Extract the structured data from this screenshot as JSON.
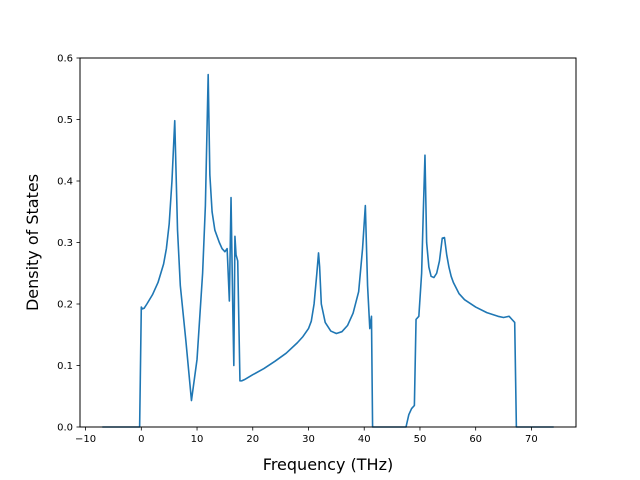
{
  "chart_data": {
    "type": "line",
    "title": "",
    "xlabel": "Frequency (THz)",
    "ylabel": "Density of States",
    "xlim": [
      -11,
      78
    ],
    "ylim": [
      0,
      0.6
    ],
    "xticks": [
      -10,
      0,
      10,
      20,
      30,
      40,
      50,
      60,
      70
    ],
    "xtick_labels": [
      "−10",
      "0",
      "10",
      "20",
      "30",
      "40",
      "50",
      "60",
      "70"
    ],
    "yticks": [
      0.0,
      0.1,
      0.2,
      0.3,
      0.4,
      0.5,
      0.6
    ],
    "ytick_labels": [
      "0.0",
      "0.1",
      "0.2",
      "0.3",
      "0.4",
      "0.5",
      "0.6"
    ],
    "grid": false,
    "legend": false,
    "line_color": "#1f77b4",
    "series": [
      {
        "x": [
          -7.0,
          -0.3,
          0.0,
          0.2,
          0.5,
          1.0,
          2.0,
          3.0,
          4.0,
          4.5,
          5.0,
          5.5,
          6.0,
          6.5,
          7.0,
          8.0,
          9.0,
          10.0,
          11.0,
          11.5,
          12.0,
          12.3,
          12.7,
          13.2,
          14.0,
          14.5,
          15.0,
          15.4,
          15.8,
          16.1,
          16.4,
          16.6,
          16.8,
          17.0,
          17.3,
          17.7,
          18.0,
          18.5,
          20.0,
          22.0,
          24.0,
          26.0,
          28.0,
          29.0,
          30.0,
          30.5,
          31.0,
          31.5,
          31.8,
          32.0,
          32.3,
          33.0,
          34.0,
          35.0,
          36.0,
          37.0,
          38.0,
          39.0,
          39.7,
          40.2,
          40.6,
          41.0,
          41.3,
          41.5,
          41.8,
          42.0,
          47.5,
          48.0,
          48.5,
          49.0,
          49.3,
          49.8,
          50.3,
          50.6,
          50.9,
          51.2,
          51.6,
          52.0,
          52.5,
          53.0,
          53.5,
          54.0,
          54.4,
          54.8,
          55.2,
          55.6,
          56.0,
          57.0,
          58.0,
          60.0,
          62.0,
          64.0,
          65.0,
          66.0,
          66.5,
          67.0,
          67.3,
          74.0
        ],
        "y": [
          0.0,
          0.0,
          0.195,
          0.192,
          0.193,
          0.2,
          0.215,
          0.235,
          0.265,
          0.29,
          0.33,
          0.4,
          0.498,
          0.32,
          0.23,
          0.14,
          0.043,
          0.11,
          0.25,
          0.36,
          0.573,
          0.41,
          0.35,
          0.32,
          0.3,
          0.29,
          0.285,
          0.29,
          0.205,
          0.373,
          0.2,
          0.1,
          0.31,
          0.28,
          0.27,
          0.075,
          0.075,
          0.077,
          0.085,
          0.095,
          0.107,
          0.12,
          0.137,
          0.147,
          0.16,
          0.172,
          0.2,
          0.25,
          0.283,
          0.26,
          0.2,
          0.17,
          0.156,
          0.152,
          0.155,
          0.165,
          0.185,
          0.22,
          0.29,
          0.36,
          0.23,
          0.16,
          0.18,
          0.0,
          0.0,
          0.0,
          0.0,
          0.02,
          0.03,
          0.035,
          0.175,
          0.18,
          0.25,
          0.35,
          0.442,
          0.3,
          0.26,
          0.245,
          0.243,
          0.25,
          0.27,
          0.307,
          0.308,
          0.28,
          0.26,
          0.245,
          0.235,
          0.217,
          0.207,
          0.195,
          0.186,
          0.18,
          0.178,
          0.18,
          0.175,
          0.17,
          0.0,
          0.0
        ]
      }
    ]
  }
}
